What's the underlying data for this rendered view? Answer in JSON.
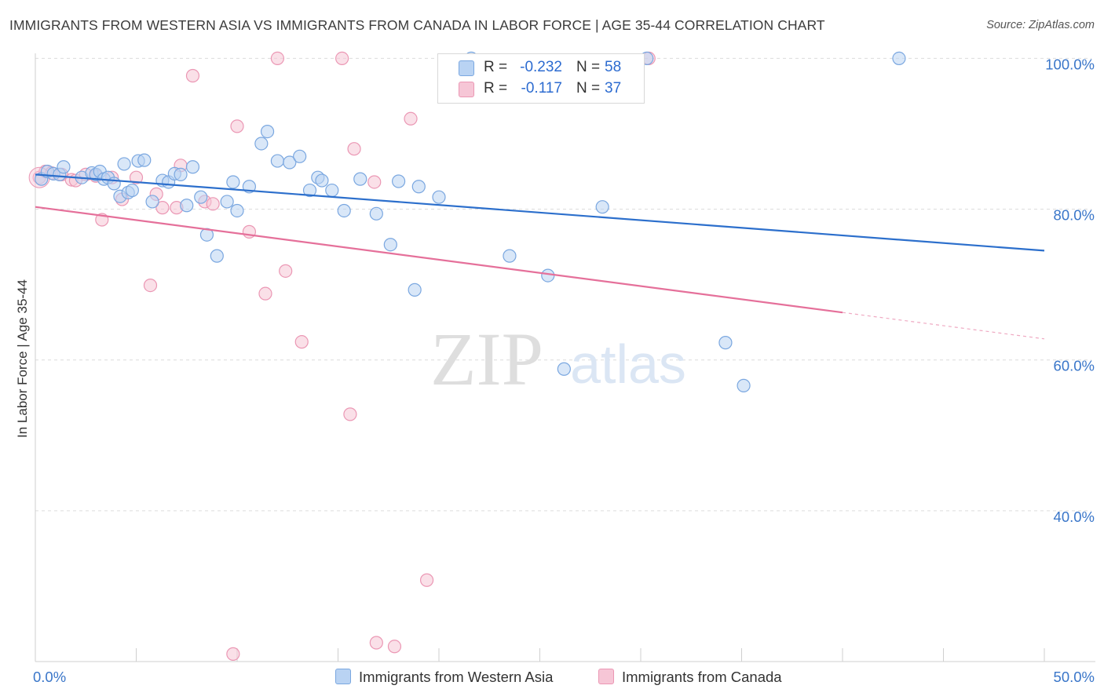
{
  "title": "IMMIGRANTS FROM WESTERN ASIA VS IMMIGRANTS FROM CANADA IN LABOR FORCE | AGE 35-44 CORRELATION CHART",
  "source": "Source: ZipAtlas.com",
  "watermark": {
    "zip": "ZIP",
    "atlas": "atlas"
  },
  "legend": {
    "rows": [
      {
        "r_label": "R =",
        "r_value": "-0.232",
        "n_label": "N =",
        "n_value": "58"
      },
      {
        "r_label": "R =",
        "r_value": "-0.117",
        "n_label": "N =",
        "n_value": "37"
      }
    ]
  },
  "colors": {
    "blue_fill": "#b9d3f3",
    "blue_stroke": "#7aa7e0",
    "blue_line": "#2c6fcc",
    "pink_fill": "#f6c6d6",
    "pink_stroke": "#eb97b4",
    "pink_line": "#e5709a",
    "grid": "#dcdcdc",
    "axis_text": "#3a76c9"
  },
  "chart_data": {
    "type": "scatter",
    "title": "IMMIGRANTS FROM WESTERN ASIA VS IMMIGRANTS FROM CANADA IN LABOR FORCE | AGE 35-44 CORRELATION CHART",
    "xlabel": "",
    "ylabel": "In Labor Force | Age 35-44",
    "xlim": [
      0,
      50
    ],
    "ylim": [
      20,
      101.5
    ],
    "x_tick_labels": [
      "0.0%",
      "50.0%"
    ],
    "y_ticks": [
      40,
      60,
      80,
      100
    ],
    "y_tick_labels": [
      "40.0%",
      "60.0%",
      "80.0%",
      "100.0%"
    ],
    "grid": true,
    "legend_position": "top-center",
    "series": [
      {
        "name": "Immigrants from Western Asia",
        "color": "#b9d3f3",
        "trend": {
          "x": [
            0,
            50
          ],
          "y": [
            84.6,
            74.5
          ],
          "dashed_from": null
        },
        "x": [
          0.3,
          0.6,
          0.9,
          1.2,
          1.4,
          2.3,
          2.8,
          3.0,
          3.2,
          3.4,
          3.6,
          3.9,
          4.2,
          4.4,
          4.6,
          4.8,
          5.1,
          5.4,
          5.8,
          6.3,
          6.6,
          6.9,
          7.2,
          7.5,
          7.8,
          8.2,
          8.5,
          9.0,
          9.5,
          9.8,
          10.0,
          10.6,
          11.2,
          11.5,
          12.0,
          12.6,
          13.1,
          13.6,
          14.0,
          14.2,
          14.7,
          15.3,
          16.1,
          16.9,
          17.6,
          18.0,
          18.8,
          19.0,
          20.0,
          21.6,
          23.5,
          25.4,
          26.2,
          28.1,
          30.3,
          34.2,
          35.1,
          42.8
        ],
        "y": [
          84.0,
          85.0,
          84.7,
          84.6,
          85.6,
          84.2,
          84.8,
          84.6,
          85.0,
          84.0,
          84.2,
          83.4,
          81.7,
          86.0,
          82.2,
          82.5,
          86.4,
          86.5,
          81.0,
          83.8,
          83.6,
          84.7,
          84.6,
          80.5,
          85.6,
          81.6,
          76.6,
          73.8,
          81.0,
          83.6,
          79.8,
          83.0,
          88.7,
          90.3,
          86.4,
          86.2,
          87.0,
          82.5,
          84.2,
          83.8,
          82.5,
          79.8,
          84.0,
          79.4,
          75.3,
          83.7,
          69.3,
          83.0,
          81.6,
          100.0,
          73.8,
          71.2,
          58.8,
          80.3,
          100.0,
          62.3,
          56.6,
          100.0
        ]
      },
      {
        "name": "Immigrants from Canada",
        "color": "#f6c6d6",
        "trend": {
          "x": [
            0,
            50
          ],
          "y": [
            80.3,
            62.8
          ],
          "dashed_from": 40
        },
        "x": [
          0.2,
          0.5,
          0.8,
          1.3,
          1.8,
          2.0,
          2.5,
          3.0,
          3.3,
          3.8,
          4.3,
          5.0,
          5.7,
          6.0,
          6.3,
          7.0,
          7.2,
          7.8,
          8.4,
          8.8,
          9.8,
          10.0,
          10.6,
          11.4,
          12.0,
          12.4,
          13.2,
          15.2,
          15.6,
          15.8,
          16.8,
          16.9,
          17.8,
          18.6,
          19.4,
          22.8,
          30.4
        ],
        "y": [
          84.2,
          85.0,
          84.8,
          84.6,
          83.9,
          83.8,
          84.6,
          84.4,
          78.6,
          84.2,
          81.3,
          84.2,
          69.9,
          82.0,
          80.2,
          80.2,
          85.8,
          97.7,
          81.0,
          80.7,
          21.0,
          91.0,
          77.0,
          68.8,
          100.0,
          71.8,
          62.4,
          100.0,
          52.8,
          88.0,
          83.6,
          22.5,
          22.0,
          92.0,
          30.8,
          96.7,
          100.0
        ]
      }
    ]
  }
}
